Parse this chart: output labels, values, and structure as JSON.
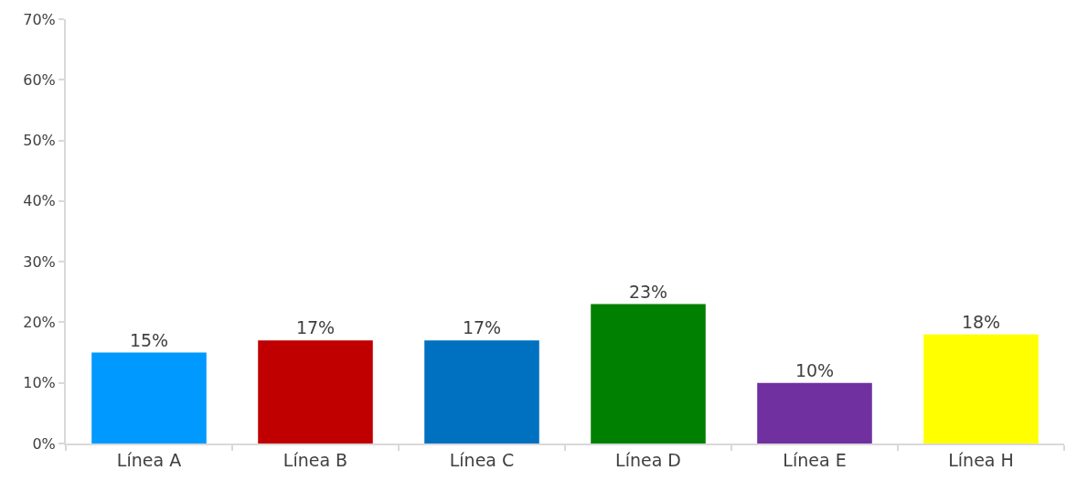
{
  "chart_data": {
    "type": "bar",
    "categories": [
      "Línea A",
      "Línea B",
      "Línea C",
      "Línea D",
      "Línea E",
      "Línea H"
    ],
    "values": [
      15,
      17,
      17,
      23,
      10,
      18
    ],
    "colors": [
      "#0099ff",
      "#c00000",
      "#0070c0",
      "#008000",
      "#7030a0",
      "#ffff00"
    ],
    "value_labels": [
      "15%",
      "17%",
      "17%",
      "23%",
      "10%",
      "18%"
    ],
    "ylim": [
      0,
      70
    ],
    "yticks": [
      {
        "value": 0,
        "label": "0%"
      },
      {
        "value": 10,
        "label": "10%"
      },
      {
        "value": 20,
        "label": "20%"
      },
      {
        "value": 30,
        "label": "30%"
      },
      {
        "value": 40,
        "label": "40%"
      },
      {
        "value": 50,
        "label": "50%"
      },
      {
        "value": 60,
        "label": "60%"
      },
      {
        "value": 70,
        "label": "70%"
      }
    ]
  }
}
